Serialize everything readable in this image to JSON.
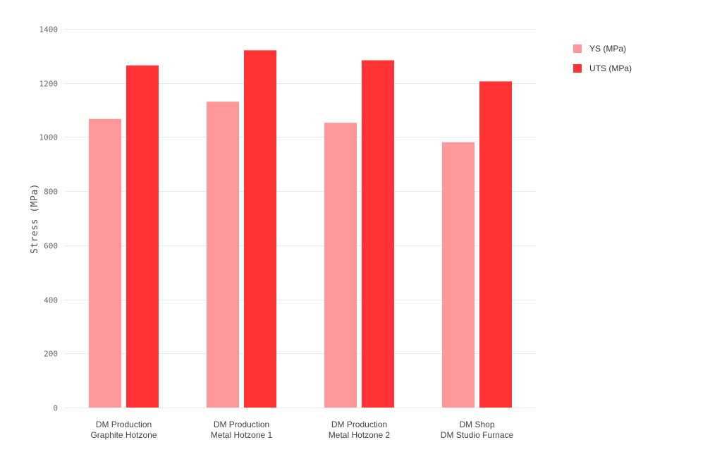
{
  "chart_data": {
    "type": "bar",
    "categories": [
      [
        "DM Production",
        "Graphite Hotzone"
      ],
      [
        "DM Production",
        "Metal Hotzone 1"
      ],
      [
        "DM Production",
        "Metal Hotzone 2"
      ],
      [
        "DM Shop",
        "DM Studio Furnace"
      ]
    ],
    "series": [
      {
        "name": "YS (MPa)",
        "color": "#ff9999",
        "values": [
          1067,
          1131,
          1053,
          981
        ]
      },
      {
        "name": "UTS (MPa)",
        "color": "#ff3333",
        "values": [
          1265,
          1321,
          1284,
          1206
        ]
      }
    ],
    "ylabel": "Stress (MPa)",
    "xlabel": "",
    "title": "",
    "ylim": [
      0,
      1400
    ],
    "yticks": [
      0,
      200,
      400,
      600,
      800,
      1000,
      1200,
      1400
    ],
    "grid": true,
    "legend_position": "top-right"
  }
}
